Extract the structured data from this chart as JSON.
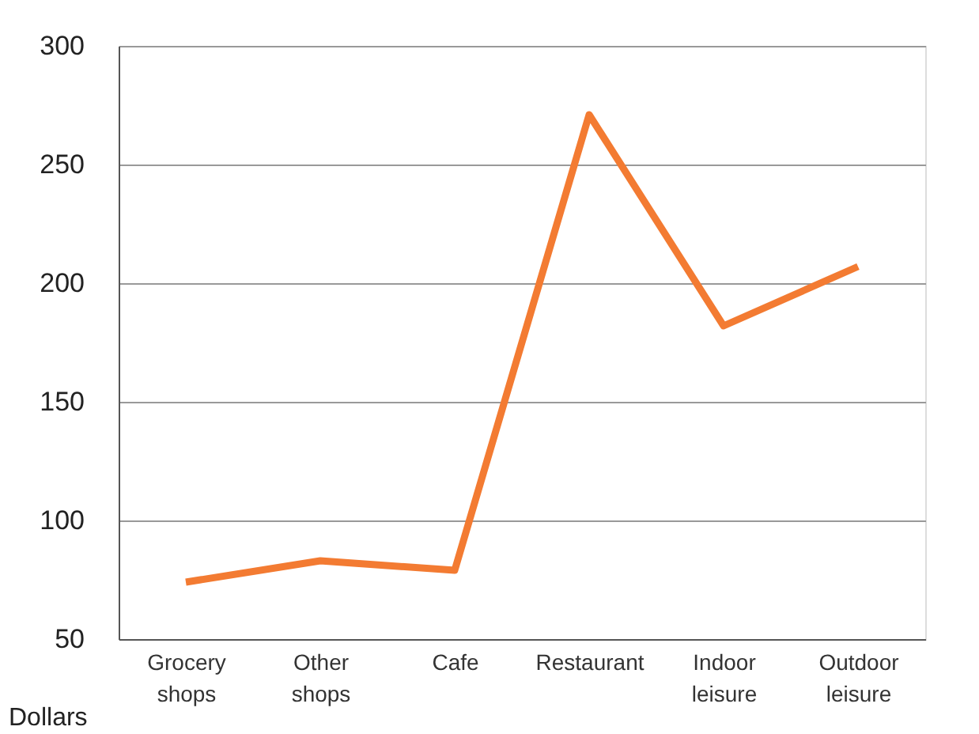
{
  "chart_data": {
    "type": "line",
    "ylabel": "Dollars",
    "categories": [
      "Grocery shops",
      "Other shops",
      "Cafe",
      "Restaurant",
      "Indoor leisure",
      "Outdoor leisure"
    ],
    "series": [
      {
        "color": "#f37b32",
        "values": [
          74,
          83,
          79,
          271,
          182,
          207
        ]
      }
    ],
    "ylim": [
      50,
      300
    ],
    "yticks": [
      50,
      100,
      150,
      200,
      250,
      300
    ],
    "grid": "y",
    "legend": false,
    "marker": "none",
    "line_style": "solid"
  }
}
